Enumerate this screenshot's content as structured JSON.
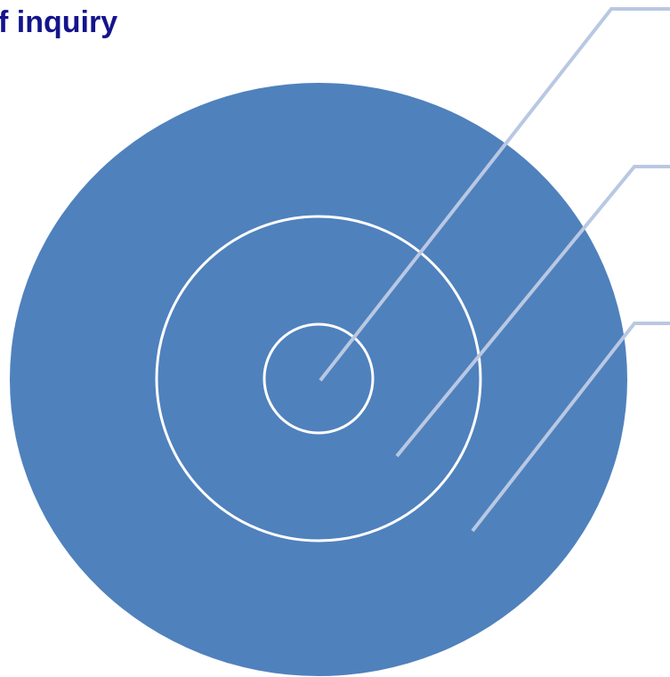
{
  "title": "f inquiry"
}
